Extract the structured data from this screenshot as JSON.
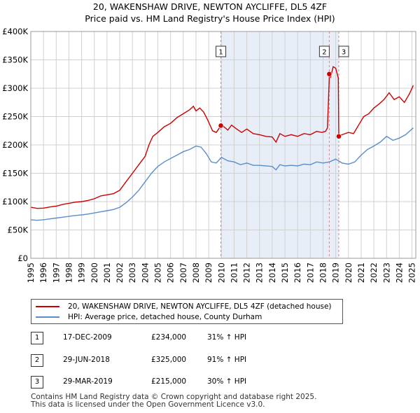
{
  "chart_data": {
    "type": "line",
    "title": "20, WAKENSHAW DRIVE, NEWTON AYCLIFFE, DL5 4ZF",
    "subtitle": "Price paid vs. HM Land Registry's House Price Index (HPI)",
    "xlim": [
      1995,
      2025.3
    ],
    "ylim": [
      0,
      400000
    ],
    "y_ticks": [
      {
        "value": 0,
        "label": "£0"
      },
      {
        "value": 50000,
        "label": "£50K"
      },
      {
        "value": 100000,
        "label": "£100K"
      },
      {
        "value": 150000,
        "label": "£150K"
      },
      {
        "value": 200000,
        "label": "£200K"
      },
      {
        "value": 250000,
        "label": "£250K"
      },
      {
        "value": 300000,
        "label": "£300K"
      },
      {
        "value": 350000,
        "label": "£350K"
      },
      {
        "value": 400000,
        "label": "£400K"
      }
    ],
    "x_ticks": [
      "1995",
      "1996",
      "1997",
      "1998",
      "1999",
      "2000",
      "2001",
      "2002",
      "2003",
      "2004",
      "2005",
      "2006",
      "2007",
      "2008",
      "2009",
      "2010",
      "2011",
      "2012",
      "2013",
      "2014",
      "2015",
      "2016",
      "2017",
      "2018",
      "2019",
      "2020",
      "2021",
      "2022",
      "2023",
      "2024",
      "2025"
    ],
    "grid": true,
    "shaded_range": [
      2009.96,
      2019.24
    ],
    "series": [
      {
        "name": "20, WAKENSHAW DRIVE, NEWTON AYCLIFFE, DL5 4ZF (detached house)",
        "color": "#cc0000",
        "points": [
          [
            1995.0,
            90000
          ],
          [
            1995.5,
            88000
          ],
          [
            1996.0,
            88500
          ],
          [
            1996.5,
            90500
          ],
          [
            1997.0,
            92000
          ],
          [
            1997.5,
            95000
          ],
          [
            1998.0,
            97000
          ],
          [
            1998.5,
            99000
          ],
          [
            1999.0,
            100000
          ],
          [
            1999.5,
            102000
          ],
          [
            2000.0,
            105000
          ],
          [
            2000.5,
            110000
          ],
          [
            2001.0,
            112000
          ],
          [
            2001.5,
            114000
          ],
          [
            2002.0,
            120000
          ],
          [
            2002.5,
            135000
          ],
          [
            2003.0,
            150000
          ],
          [
            2003.5,
            165000
          ],
          [
            2004.0,
            180000
          ],
          [
            2004.3,
            200000
          ],
          [
            2004.6,
            215000
          ],
          [
            2005.0,
            222000
          ],
          [
            2005.5,
            232000
          ],
          [
            2006.0,
            238000
          ],
          [
            2006.5,
            248000
          ],
          [
            2007.0,
            255000
          ],
          [
            2007.5,
            262000
          ],
          [
            2007.8,
            268000
          ],
          [
            2008.0,
            260000
          ],
          [
            2008.3,
            265000
          ],
          [
            2008.6,
            258000
          ],
          [
            2008.9,
            245000
          ],
          [
            2009.3,
            225000
          ],
          [
            2009.6,
            222000
          ],
          [
            2009.96,
            234000
          ],
          [
            2010.2,
            232000
          ],
          [
            2010.5,
            226000
          ],
          [
            2010.8,
            235000
          ],
          [
            2011.2,
            228000
          ],
          [
            2011.6,
            222000
          ],
          [
            2012.0,
            228000
          ],
          [
            2012.5,
            220000
          ],
          [
            2013.0,
            218000
          ],
          [
            2013.5,
            215000
          ],
          [
            2014.0,
            214000
          ],
          [
            2014.3,
            205000
          ],
          [
            2014.6,
            220000
          ],
          [
            2015.0,
            215000
          ],
          [
            2015.5,
            218000
          ],
          [
            2016.0,
            215000
          ],
          [
            2016.5,
            220000
          ],
          [
            2017.0,
            218000
          ],
          [
            2017.5,
            224000
          ],
          [
            2017.9,
            222000
          ],
          [
            2018.2,
            224000
          ],
          [
            2018.35,
            230000
          ],
          [
            2018.5,
            325000
          ],
          [
            2018.6,
            320000
          ],
          [
            2018.8,
            338000
          ],
          [
            2019.0,
            335000
          ],
          [
            2019.2,
            318000
          ],
          [
            2019.24,
            215000
          ],
          [
            2019.5,
            218000
          ],
          [
            2020.0,
            222000
          ],
          [
            2020.4,
            220000
          ],
          [
            2020.8,
            235000
          ],
          [
            2021.2,
            250000
          ],
          [
            2021.6,
            255000
          ],
          [
            2022.0,
            265000
          ],
          [
            2022.4,
            272000
          ],
          [
            2022.8,
            280000
          ],
          [
            2023.2,
            292000
          ],
          [
            2023.6,
            280000
          ],
          [
            2024.0,
            285000
          ],
          [
            2024.4,
            275000
          ],
          [
            2024.8,
            290000
          ],
          [
            2025.1,
            305000
          ]
        ]
      },
      {
        "name": "HPI: Average price, detached house, County Durham",
        "color": "#5b8ec9",
        "points": [
          [
            1995.0,
            68000
          ],
          [
            1995.5,
            67000
          ],
          [
            1996.0,
            68000
          ],
          [
            1996.5,
            69500
          ],
          [
            1997.0,
            71000
          ],
          [
            1997.5,
            72500
          ],
          [
            1998.0,
            74000
          ],
          [
            1998.5,
            75500
          ],
          [
            1999.0,
            76500
          ],
          [
            1999.5,
            78000
          ],
          [
            2000.0,
            80000
          ],
          [
            2000.5,
            82000
          ],
          [
            2001.0,
            84000
          ],
          [
            2001.5,
            86000
          ],
          [
            2002.0,
            90000
          ],
          [
            2002.5,
            98000
          ],
          [
            2003.0,
            108000
          ],
          [
            2003.5,
            120000
          ],
          [
            2004.0,
            135000
          ],
          [
            2004.5,
            150000
          ],
          [
            2005.0,
            162000
          ],
          [
            2005.5,
            170000
          ],
          [
            2006.0,
            176000
          ],
          [
            2006.5,
            182000
          ],
          [
            2007.0,
            188000
          ],
          [
            2007.5,
            192000
          ],
          [
            2008.0,
            198000
          ],
          [
            2008.4,
            196000
          ],
          [
            2008.8,
            185000
          ],
          [
            2009.2,
            170000
          ],
          [
            2009.6,
            168000
          ],
          [
            2010.0,
            178000
          ],
          [
            2010.5,
            172000
          ],
          [
            2011.0,
            170000
          ],
          [
            2011.5,
            165000
          ],
          [
            2012.0,
            168000
          ],
          [
            2012.5,
            164000
          ],
          [
            2013.0,
            164000
          ],
          [
            2013.5,
            163000
          ],
          [
            2014.0,
            162000
          ],
          [
            2014.3,
            156000
          ],
          [
            2014.6,
            165000
          ],
          [
            2015.0,
            163000
          ],
          [
            2015.5,
            164000
          ],
          [
            2016.0,
            163000
          ],
          [
            2016.5,
            166000
          ],
          [
            2017.0,
            165000
          ],
          [
            2017.5,
            170000
          ],
          [
            2018.0,
            168000
          ],
          [
            2018.5,
            170000
          ],
          [
            2019.0,
            175000
          ],
          [
            2019.5,
            168000
          ],
          [
            2020.0,
            166000
          ],
          [
            2020.5,
            170000
          ],
          [
            2021.0,
            182000
          ],
          [
            2021.5,
            192000
          ],
          [
            2022.0,
            198000
          ],
          [
            2022.5,
            205000
          ],
          [
            2023.0,
            215000
          ],
          [
            2023.5,
            208000
          ],
          [
            2024.0,
            212000
          ],
          [
            2024.5,
            218000
          ],
          [
            2025.1,
            230000
          ]
        ]
      }
    ],
    "transactions": [
      {
        "num": "1",
        "x": 2009.96,
        "value": 234000,
        "date": "17-DEC-2009",
        "price": "£234,000",
        "hpi": "31% ↑ HPI"
      },
      {
        "num": "2",
        "x": 2018.49,
        "value": 325000,
        "date": "29-JUN-2018",
        "price": "£325,000",
        "hpi": "91% ↑ HPI"
      },
      {
        "num": "3",
        "x": 2019.24,
        "value": 215000,
        "date": "29-MAR-2019",
        "price": "£215,000",
        "hpi": "30% ↑ HPI"
      }
    ],
    "colors": {
      "property": "#cc0000",
      "hpi": "#5b8ec9",
      "shade": "#e8eef8",
      "grid": "#d0d0d0",
      "vline": "#e08080"
    }
  },
  "legend": {
    "property_label": "20, WAKENSHAW DRIVE, NEWTON AYCLIFFE, DL5 4ZF (detached house)",
    "hpi_label": "HPI: Average price, detached house, County Durham"
  },
  "footer": {
    "line1": "Contains HM Land Registry data © Crown copyright and database right 2025.",
    "line2": "This data is licensed under the Open Government Licence v3.0."
  }
}
